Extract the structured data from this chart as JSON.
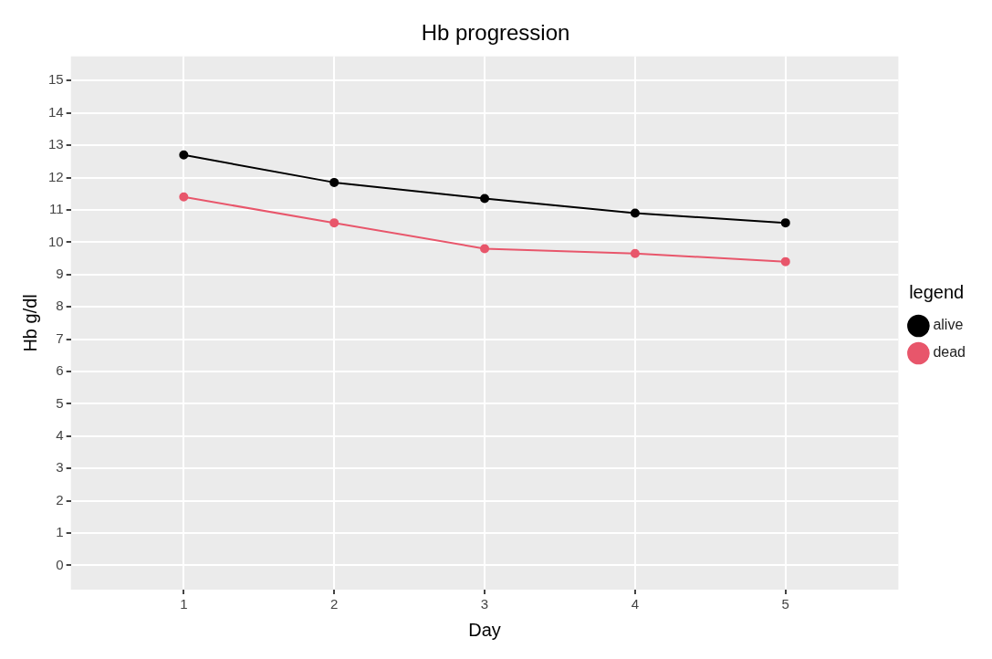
{
  "chart_data": {
    "type": "line",
    "title": "Hb progression",
    "xlabel": "Day",
    "ylabel": "Hb g/dl",
    "legend_title": "legend",
    "x": [
      1,
      2,
      3,
      4,
      5
    ],
    "series": [
      {
        "name": "alive",
        "color": "#000000",
        "values": [
          12.7,
          11.85,
          11.35,
          10.9,
          10.6
        ]
      },
      {
        "name": "dead",
        "color": "#e8566b",
        "values": [
          11.4,
          10.6,
          9.8,
          9.65,
          9.4
        ]
      }
    ],
    "xlim": [
      0.25,
      5.75
    ],
    "xticks": [
      1,
      2,
      3,
      4,
      5
    ],
    "ylim": [
      -0.75,
      15.75
    ],
    "yticks": [
      0,
      1,
      2,
      3,
      4,
      5,
      6,
      7,
      8,
      9,
      10,
      11,
      12,
      13,
      14,
      15
    ],
    "grid": true,
    "legend": "right",
    "marker": "circle",
    "line_style": "solid"
  }
}
